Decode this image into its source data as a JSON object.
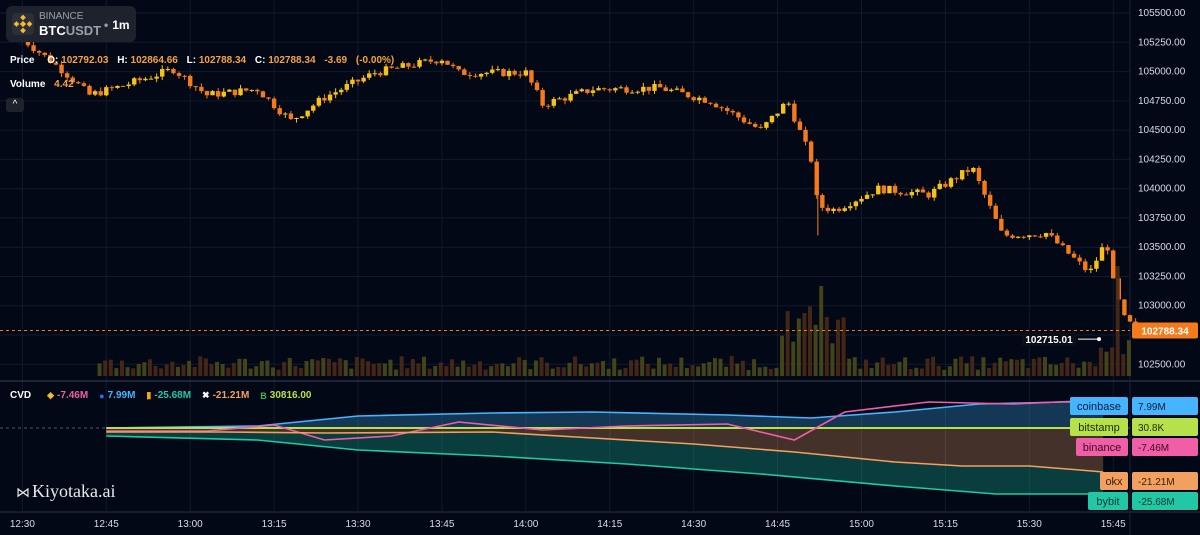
{
  "header": {
    "exchange": "BINANCE",
    "symbol_base": "BTC",
    "symbol_quote": "USDT",
    "timeframe": "1m",
    "dot": "•"
  },
  "ohlc": {
    "label": "Price",
    "o_label": "O:",
    "o": "102792.03",
    "h_label": "H:",
    "h": "102864.66",
    "l_label": "L:",
    "l": "102788.34",
    "c_label": "C:",
    "c": "102788.34",
    "change": "-3.69",
    "change_pct": "(-0.00%)"
  },
  "volume": {
    "label": "Volume",
    "value": "4.42"
  },
  "collapse_label": "^",
  "cvd_legend": {
    "label": "CVD",
    "items": [
      {
        "icon": "binance-icon",
        "value": "-7.46M",
        "color": "#f05ea8"
      },
      {
        "icon": "coinbase-icon",
        "value": "7.99M",
        "color": "#46b4ff"
      },
      {
        "icon": "bybit-icon",
        "value": "-25.68M",
        "color": "#22c8a5"
      },
      {
        "icon": "okx-icon",
        "value": "-21.21M",
        "color": "#f2a060"
      },
      {
        "icon": "bitstamp-icon",
        "value": "30816.00",
        "color": "#b6e14b"
      }
    ]
  },
  "brand": "Kiyotaka.ai",
  "colors": {
    "bg": "#020816",
    "up": "#f6c21a",
    "down": "#f57a1b",
    "grid": "#111a2a",
    "axis_text": "#d8dbe3",
    "price_line": "#f57a1b"
  },
  "chart_data": {
    "type": "candlestick",
    "x_tick_labels": [
      "12:30",
      "12:45",
      "13:00",
      "13:15",
      "13:30",
      "13:45",
      "14:00",
      "14:15",
      "14:30",
      "14:45",
      "15:00",
      "15:15",
      "15:30",
      "15:45"
    ],
    "y_tick_labels": [
      "105500.00",
      "105250.00",
      "105000.00",
      "104750.00",
      "104500.00",
      "104250.00",
      "104000.00",
      "103750.00",
      "103500.00",
      "103250.00",
      "103000.00",
      "102750.00",
      "102500.00"
    ],
    "ylim": [
      102400,
      105560
    ],
    "price_path": [
      [
        12.5,
        105280
      ],
      [
        12.62,
        105010
      ],
      [
        12.7,
        104800
      ],
      [
        12.8,
        104880
      ],
      [
        12.95,
        105020
      ],
      [
        13.05,
        104800
      ],
      [
        13.2,
        104850
      ],
      [
        13.3,
        104580
      ],
      [
        13.4,
        104780
      ],
      [
        13.55,
        104990
      ],
      [
        13.75,
        105110
      ],
      [
        13.8,
        104990
      ],
      [
        14.0,
        104990
      ],
      [
        14.05,
        104720
      ],
      [
        14.2,
        104850
      ],
      [
        14.4,
        104860
      ],
      [
        14.55,
        104750
      ],
      [
        14.7,
        104500
      ],
      [
        14.78,
        104750
      ],
      [
        14.85,
        104250
      ],
      [
        14.87,
        103850
      ],
      [
        14.92,
        103820
      ],
      [
        15.05,
        104000
      ],
      [
        15.2,
        103950
      ],
      [
        15.33,
        104180
      ],
      [
        15.42,
        103600
      ],
      [
        15.55,
        103620
      ],
      [
        15.68,
        103280
      ],
      [
        15.73,
        103560
      ],
      [
        15.75,
        103200
      ],
      [
        15.78,
        102900
      ],
      [
        15.82,
        102788.34
      ]
    ],
    "current_price": "102788.34",
    "marker_price": "102715.01",
    "cvd_series": [
      {
        "name": "coinbase",
        "value": "7.99M",
        "color": "#46b4ff",
        "text_color": "#0b1d3a"
      },
      {
        "name": "bitstamp",
        "value": "30.8K",
        "color": "#b6e14b",
        "text_color": "#1b2a05"
      },
      {
        "name": "binance",
        "value": "-7.46M",
        "color": "#f05ea8",
        "text_color": "#3a0b20"
      },
      {
        "name": "okx",
        "value": "-21.21M",
        "color": "#f2a060",
        "text_color": "#3a1d05"
      },
      {
        "name": "bybit",
        "value": "-25.68M",
        "color": "#22c8a5",
        "text_color": "#043a2c"
      }
    ]
  }
}
